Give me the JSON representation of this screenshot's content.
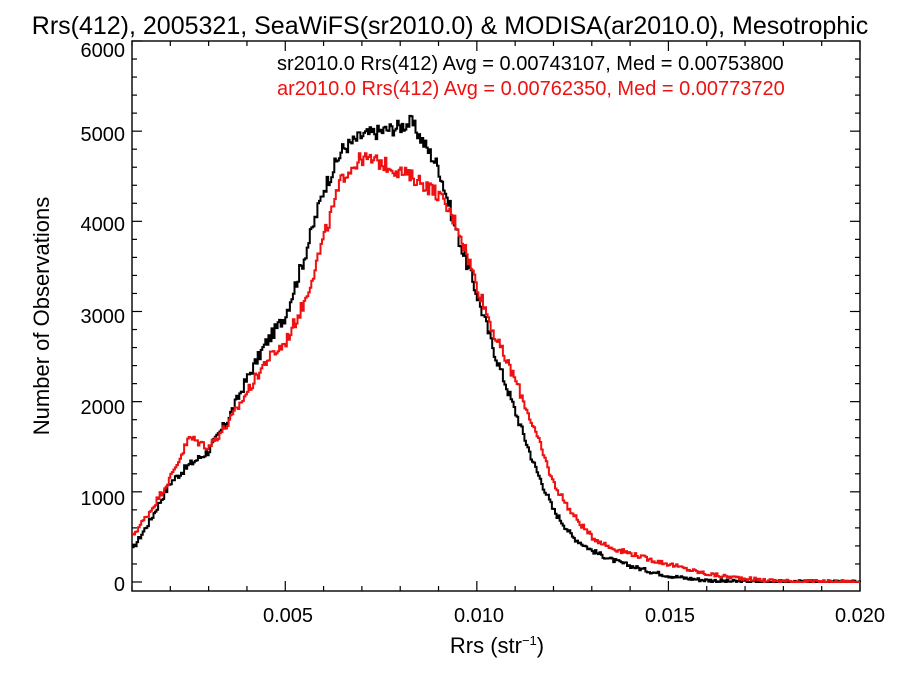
{
  "chart_data": {
    "type": "line",
    "title": "Rrs(412), 2005321, SeaWiFS(sr2010.0) & MODISA(ar2010.0), Mesotrophic",
    "xlabel": "Rrs (str",
    "xlabel_sup": "−1",
    "xlabel_close": ")",
    "ylabel": "Number of Observations",
    "xlim": [
      0.001,
      0.02
    ],
    "ylim": [
      -100,
      6000
    ],
    "x_ticks": [
      "0.005",
      "0.010",
      "0.015",
      "0.020"
    ],
    "y_ticks": [
      "0",
      "1000",
      "2000",
      "3000",
      "4000",
      "5000",
      "6000"
    ],
    "legend": [
      {
        "text": "sr2010.0 Rrs(412) Avg = 0.00743107, Med = 0.00753800",
        "color": "#000000"
      },
      {
        "text": "ar2010.0 Rrs(412) Avg = 0.00762350, Med = 0.00773720",
        "color": "#ee1111"
      }
    ],
    "grid": false,
    "series": [
      {
        "name": "sr2010.0",
        "color": "#000000",
        "x": [
          0.001,
          0.0015,
          0.002,
          0.0025,
          0.003,
          0.0035,
          0.004,
          0.0045,
          0.005,
          0.0055,
          0.006,
          0.0065,
          0.007,
          0.0075,
          0.008,
          0.0083,
          0.0085,
          0.009,
          0.0095,
          0.01,
          0.0105,
          0.011,
          0.0115,
          0.012,
          0.0125,
          0.013,
          0.0135,
          0.014,
          0.0145,
          0.015,
          0.0155,
          0.016,
          0.0165,
          0.017,
          0.0175,
          0.018,
          0.019,
          0.02
        ],
        "y": [
          350,
          700,
          1100,
          1300,
          1450,
          1800,
          2250,
          2650,
          2950,
          3600,
          4350,
          4800,
          4950,
          5000,
          5050,
          5100,
          4950,
          4600,
          3850,
          3200,
          2500,
          1900,
          1300,
          800,
          500,
          350,
          250,
          180,
          120,
          70,
          40,
          20,
          8,
          4,
          2,
          1,
          0,
          0
        ]
      },
      {
        "name": "ar2010.0",
        "color": "#ee1111",
        "x": [
          0.001,
          0.0015,
          0.002,
          0.0025,
          0.003,
          0.0035,
          0.004,
          0.0045,
          0.005,
          0.0055,
          0.006,
          0.0065,
          0.007,
          0.0075,
          0.008,
          0.0085,
          0.009,
          0.0095,
          0.01,
          0.0105,
          0.011,
          0.0115,
          0.012,
          0.0125,
          0.013,
          0.0135,
          0.014,
          0.0145,
          0.015,
          0.0155,
          0.016,
          0.0165,
          0.017,
          0.0175,
          0.018,
          0.0185,
          0.019,
          0.02
        ],
        "y": [
          500,
          800,
          1150,
          1600,
          1500,
          1750,
          2100,
          2450,
          2650,
          3100,
          3800,
          4500,
          4700,
          4650,
          4550,
          4450,
          4300,
          3950,
          3300,
          2700,
          2250,
          1700,
          1100,
          750,
          500,
          380,
          320,
          250,
          200,
          140,
          90,
          60,
          40,
          20,
          10,
          5,
          2,
          0
        ]
      }
    ]
  }
}
